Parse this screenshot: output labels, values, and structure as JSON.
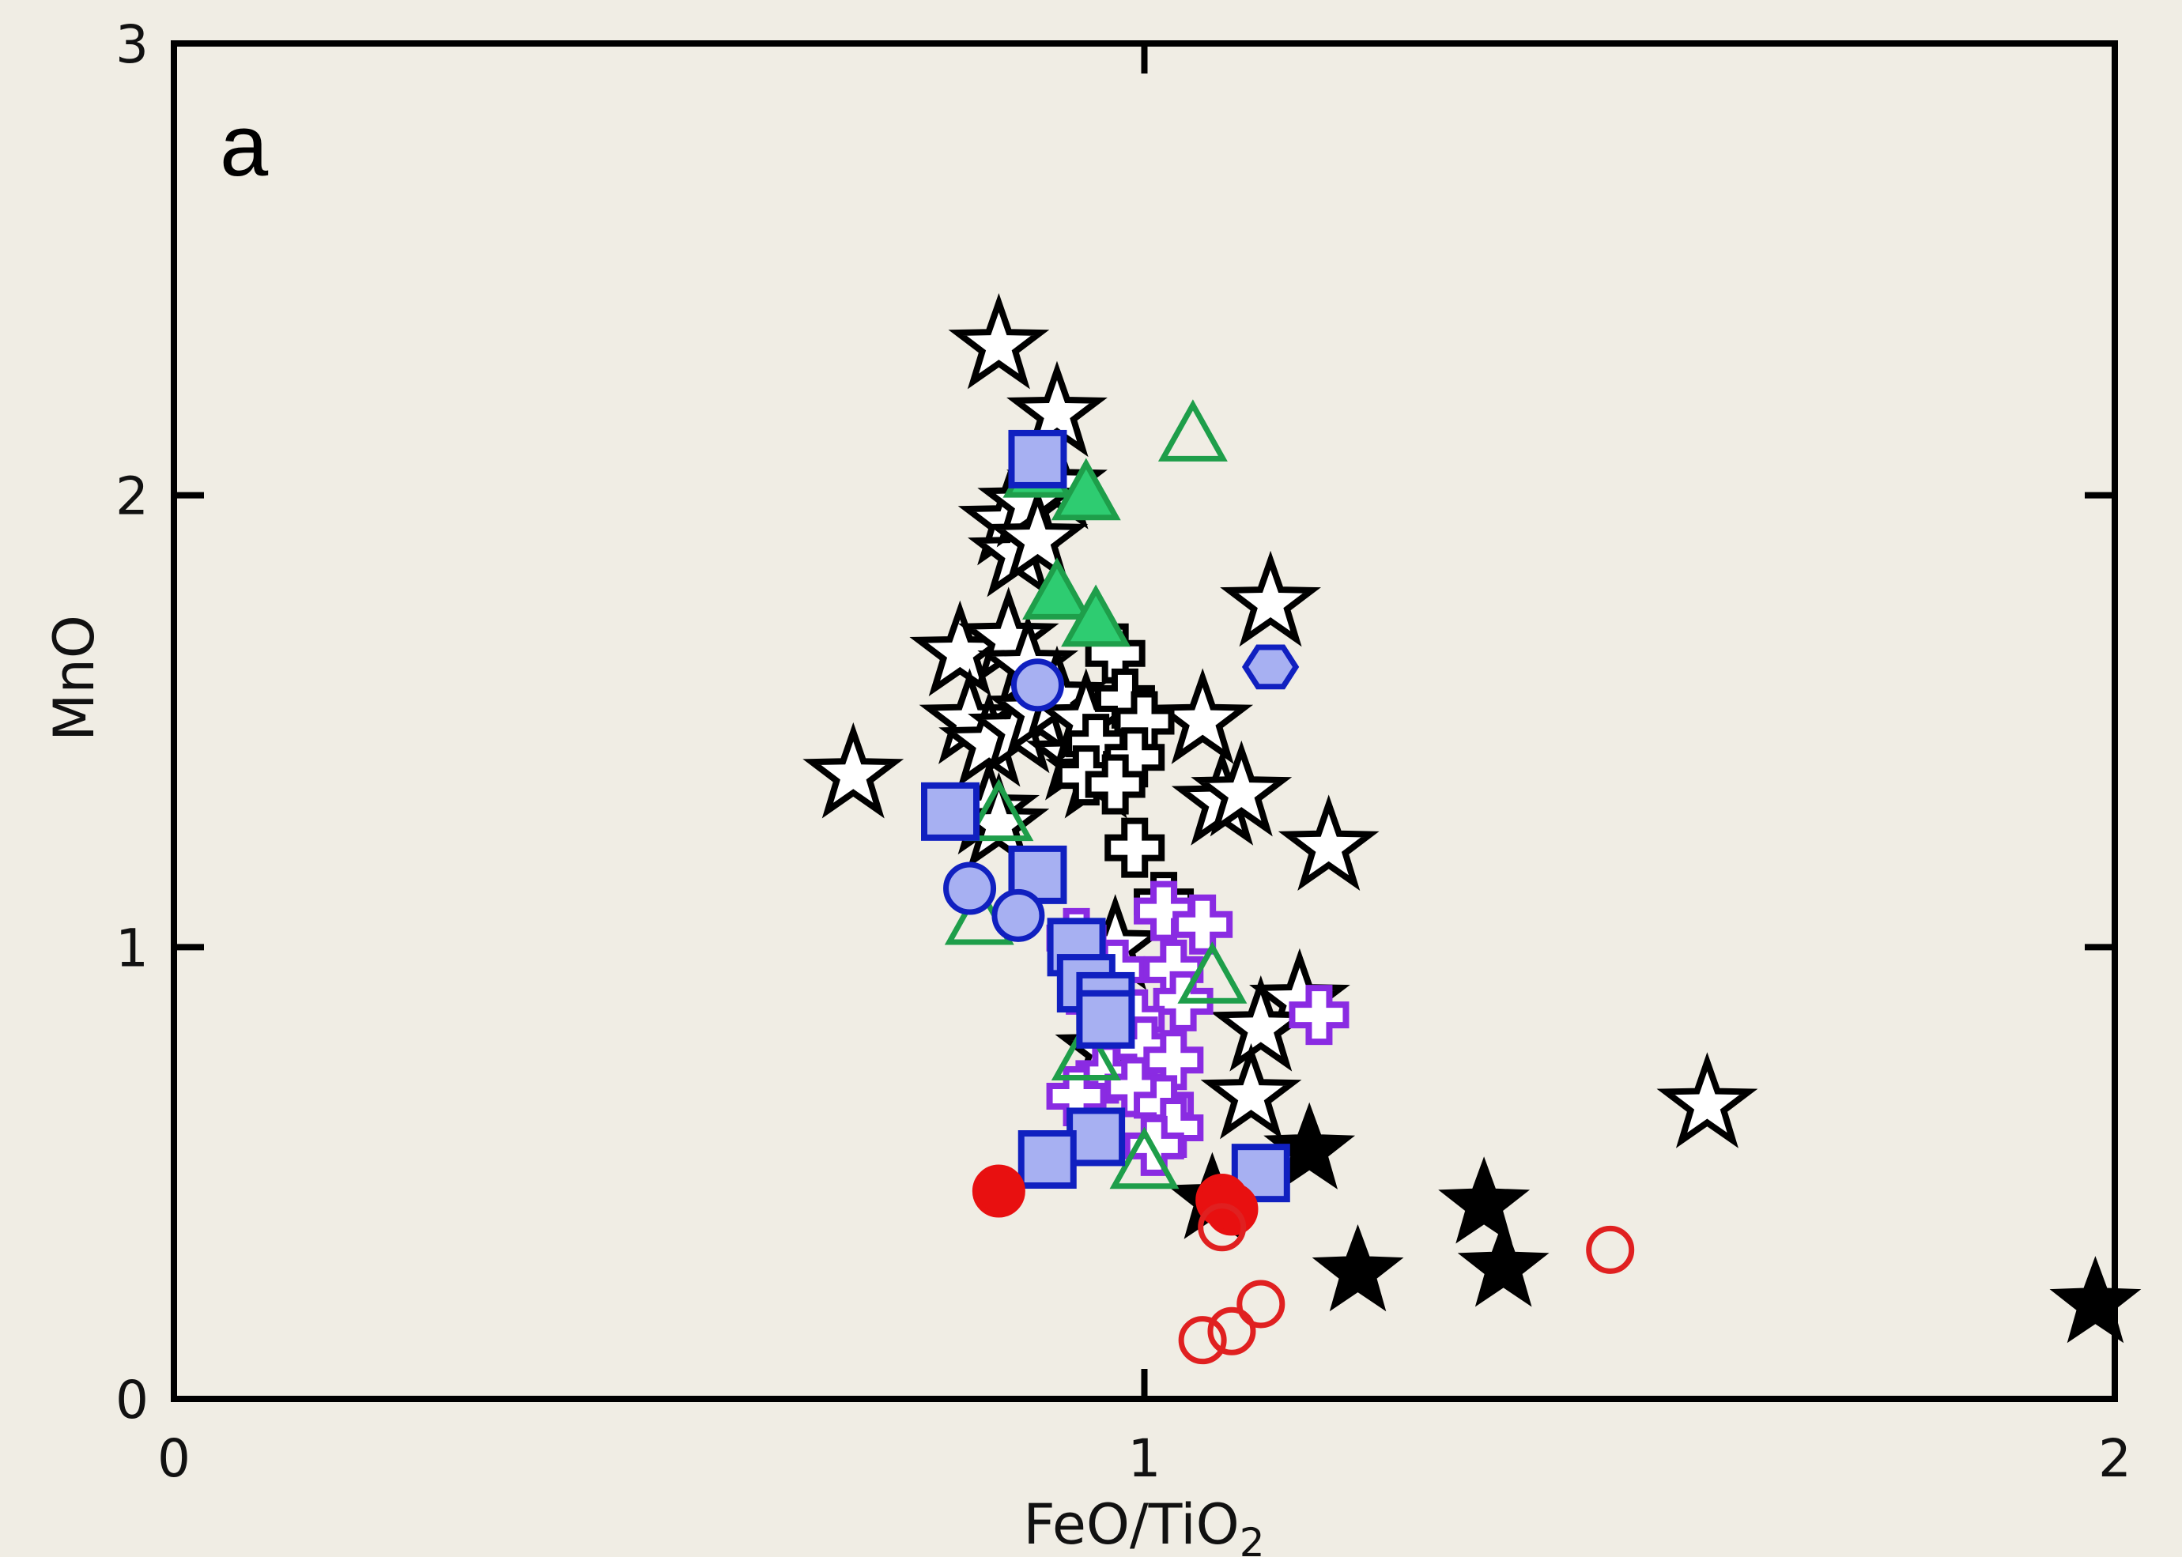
{
  "chart_data": {
    "type": "scatter",
    "panel_label": "a",
    "xlabel": "FeO/TiO",
    "xlabel_sub": "2",
    "ylabel": "MnO",
    "xlim": [
      0,
      2
    ],
    "ylim": [
      0,
      3
    ],
    "xticks": [
      0,
      1,
      2
    ],
    "yticks": [
      0,
      1,
      2,
      3
    ],
    "grid": false,
    "series": [
      {
        "marker": "star-open",
        "color": "#000000",
        "points": [
          [
            0.85,
            2.33
          ],
          [
            0.91,
            2.18
          ],
          [
            0.91,
            2.02
          ],
          [
            0.86,
            1.94
          ],
          [
            0.87,
            1.87
          ],
          [
            0.88,
            1.98
          ],
          [
            0.89,
            1.9
          ],
          [
            0.81,
            1.65
          ],
          [
            0.86,
            1.68
          ],
          [
            0.88,
            1.62
          ],
          [
            0.82,
            1.5
          ],
          [
            0.84,
            1.45
          ],
          [
            0.87,
            1.48
          ],
          [
            0.89,
            1.52
          ],
          [
            0.91,
            1.55
          ],
          [
            0.93,
            1.42
          ],
          [
            0.95,
            1.38
          ],
          [
            0.94,
            1.5
          ],
          [
            0.84,
            1.3
          ],
          [
            0.7,
            1.38
          ],
          [
            0.85,
            1.27
          ],
          [
            1.13,
            1.76
          ],
          [
            1.06,
            1.5
          ],
          [
            1.08,
            1.32
          ],
          [
            1.1,
            1.34
          ],
          [
            1.19,
            1.22
          ],
          [
            0.97,
            1.0
          ],
          [
            1.16,
            0.88
          ],
          [
            1.12,
            0.82
          ],
          [
            0.96,
            0.77
          ],
          [
            1.11,
            0.67
          ],
          [
            1.58,
            0.65
          ]
        ]
      },
      {
        "marker": "star-filled",
        "color": "#000000",
        "points": [
          [
            1.17,
            0.55
          ],
          [
            1.07,
            0.44
          ],
          [
            1.35,
            0.43
          ],
          [
            1.22,
            0.28
          ],
          [
            1.37,
            0.29
          ],
          [
            1.98,
            0.21
          ]
        ]
      },
      {
        "marker": "cross-open",
        "color": "#000000",
        "points": [
          [
            0.97,
            1.65
          ],
          [
            0.98,
            1.55
          ],
          [
            1.0,
            1.5
          ],
          [
            0.95,
            1.45
          ],
          [
            0.99,
            1.42
          ],
          [
            0.94,
            1.38
          ],
          [
            0.97,
            1.36
          ],
          [
            0.99,
            1.22
          ],
          [
            1.02,
            1.1
          ]
        ]
      },
      {
        "marker": "cross-open",
        "color": "#8a2be2",
        "points": [
          [
            1.02,
            1.08
          ],
          [
            1.06,
            1.05
          ],
          [
            0.93,
            1.02
          ],
          [
            0.97,
            0.95
          ],
          [
            1.03,
            0.95
          ],
          [
            1.04,
            0.88
          ],
          [
            0.95,
            0.88
          ],
          [
            0.99,
            0.84
          ],
          [
            1.18,
            0.85
          ],
          [
            1.0,
            0.78
          ],
          [
            1.03,
            0.75
          ],
          [
            0.96,
            0.72
          ],
          [
            0.99,
            0.69
          ],
          [
            0.93,
            0.67
          ],
          [
            1.02,
            0.65
          ],
          [
            1.03,
            0.6
          ],
          [
            1.01,
            0.56
          ]
        ]
      },
      {
        "marker": "triangle-filled",
        "color": "#2ecc71",
        "points": [
          [
            0.89,
            2.05
          ],
          [
            0.94,
            2.0
          ],
          [
            0.91,
            1.78
          ],
          [
            0.95,
            1.72
          ]
        ]
      },
      {
        "marker": "triangle-open",
        "color": "#1e9e4a",
        "points": [
          [
            1.05,
            2.13
          ],
          [
            0.85,
            1.29
          ],
          [
            0.83,
            1.06
          ],
          [
            1.07,
            0.93
          ],
          [
            0.94,
            0.76
          ],
          [
            1.0,
            0.52
          ]
        ]
      },
      {
        "marker": "square-filled",
        "color": "#a7b0f2",
        "points": [
          [
            0.89,
            2.08
          ],
          [
            0.8,
            1.3
          ],
          [
            0.89,
            1.16
          ],
          [
            0.93,
            1.0
          ],
          [
            0.94,
            0.92
          ],
          [
            0.96,
            0.88
          ],
          [
            0.96,
            0.84
          ],
          [
            0.95,
            0.58
          ],
          [
            0.9,
            0.53
          ],
          [
            1.12,
            0.5
          ]
        ]
      },
      {
        "marker": "circle-filled",
        "color": "#a7b0f2",
        "points": [
          [
            0.82,
            1.13
          ],
          [
            0.87,
            1.07
          ],
          [
            0.89,
            1.58
          ]
        ]
      },
      {
        "marker": "hexagon-filled",
        "color": "#a7b0f2",
        "points": [
          [
            1.13,
            1.62
          ]
        ]
      },
      {
        "marker": "circle-filled",
        "color": "#e81010",
        "points": [
          [
            0.85,
            0.46
          ],
          [
            1.08,
            0.44
          ],
          [
            1.09,
            0.42
          ]
        ]
      },
      {
        "marker": "circle-open",
        "color": "#e02020",
        "points": [
          [
            1.08,
            0.38
          ],
          [
            1.48,
            0.33
          ],
          [
            1.12,
            0.21
          ],
          [
            1.09,
            0.15
          ],
          [
            1.06,
            0.13
          ]
        ]
      }
    ]
  }
}
